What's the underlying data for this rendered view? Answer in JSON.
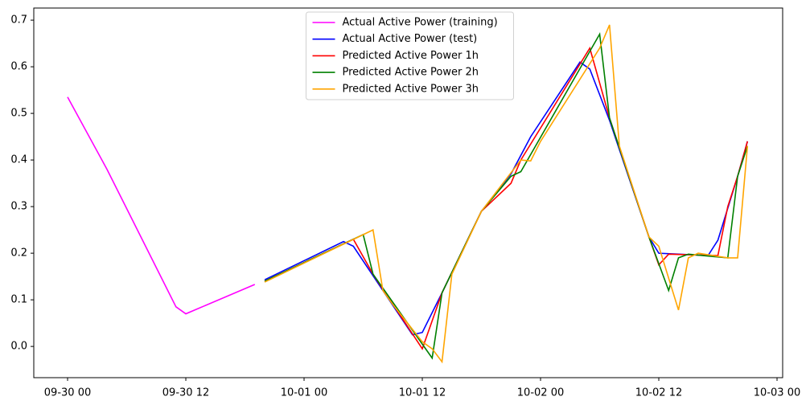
{
  "chart_data": {
    "type": "line",
    "xlim": [
      -3.43,
      72.57
    ],
    "ylim": [
      -0.067,
      0.726
    ],
    "xticks": [
      {
        "value": 0,
        "label": "09-30 00"
      },
      {
        "value": 12,
        "label": "09-30 12"
      },
      {
        "value": 24,
        "label": "10-01 00"
      },
      {
        "value": 36,
        "label": "10-01 12"
      },
      {
        "value": 48,
        "label": "10-02 00"
      },
      {
        "value": 60,
        "label": "10-02 12"
      },
      {
        "value": 72,
        "label": "10-03 00"
      }
    ],
    "yticks": [
      {
        "value": 0,
        "label": "0.0"
      },
      {
        "value": 0.1,
        "label": "0.1"
      },
      {
        "value": 0.2,
        "label": "0.2"
      },
      {
        "value": 0.3,
        "label": "0.3"
      },
      {
        "value": 0.4,
        "label": "0.4"
      },
      {
        "value": 0.5,
        "label": "0.5"
      },
      {
        "value": 0.6,
        "label": "0.6"
      },
      {
        "value": 0.7,
        "label": "0.7"
      }
    ],
    "legend": "upper center",
    "series": [
      {
        "name": "Actual Active Power (training)",
        "color": "#ff00ff",
        "x": [
          0,
          4,
          11,
          12,
          19
        ],
        "values": [
          0.535,
          0.38,
          0.085,
          0.07,
          0.133
        ]
      },
      {
        "name": "Actual Active Power (test)",
        "color": "#0000ff",
        "x": [
          20,
          28,
          29,
          35,
          36,
          38,
          42,
          45,
          47,
          52,
          53,
          55,
          59,
          60,
          62,
          65,
          66,
          68,
          69
        ],
        "values": [
          0.143,
          0.225,
          0.215,
          0.025,
          0.03,
          0.115,
          0.29,
          0.37,
          0.45,
          0.61,
          0.595,
          0.485,
          0.235,
          0.2,
          0.198,
          0.195,
          0.228,
          0.365,
          0.44
        ]
      },
      {
        "name": "Predicted Active Power 1h",
        "color": "#ff0000",
        "x": [
          20,
          29,
          31,
          36,
          38,
          42,
          45,
          46,
          53,
          55,
          59,
          60,
          61,
          66,
          67,
          68,
          69
        ],
        "values": [
          0.14,
          0.23,
          0.155,
          -0.005,
          0.115,
          0.29,
          0.35,
          0.4,
          0.64,
          0.49,
          0.235,
          0.175,
          0.198,
          0.195,
          0.3,
          0.365,
          0.44
        ]
      },
      {
        "name": "Predicted Active Power 2h",
        "color": "#008000",
        "x": [
          20,
          30,
          31,
          37,
          38,
          42,
          45,
          46,
          54,
          55,
          59,
          61,
          62,
          63,
          67,
          68,
          69
        ],
        "values": [
          0.14,
          0.24,
          0.155,
          -0.025,
          0.115,
          0.29,
          0.365,
          0.375,
          0.67,
          0.49,
          0.235,
          0.12,
          0.19,
          0.198,
          0.19,
          0.365,
          0.43
        ]
      },
      {
        "name": "Predicted Active Power 3h",
        "color": "#ffa500",
        "x": [
          20,
          31,
          32,
          33,
          36,
          37,
          38,
          39,
          42,
          46,
          47,
          48,
          54,
          55,
          56,
          59,
          60,
          62,
          63,
          64,
          67,
          68,
          69
        ],
        "values": [
          0.138,
          0.25,
          0.12,
          0.09,
          0.01,
          -0.005,
          -0.033,
          0.155,
          0.29,
          0.4,
          0.398,
          0.44,
          0.64,
          0.69,
          0.43,
          0.235,
          0.215,
          0.078,
          0.19,
          0.2,
          0.19,
          0.19,
          0.43
        ]
      }
    ]
  }
}
